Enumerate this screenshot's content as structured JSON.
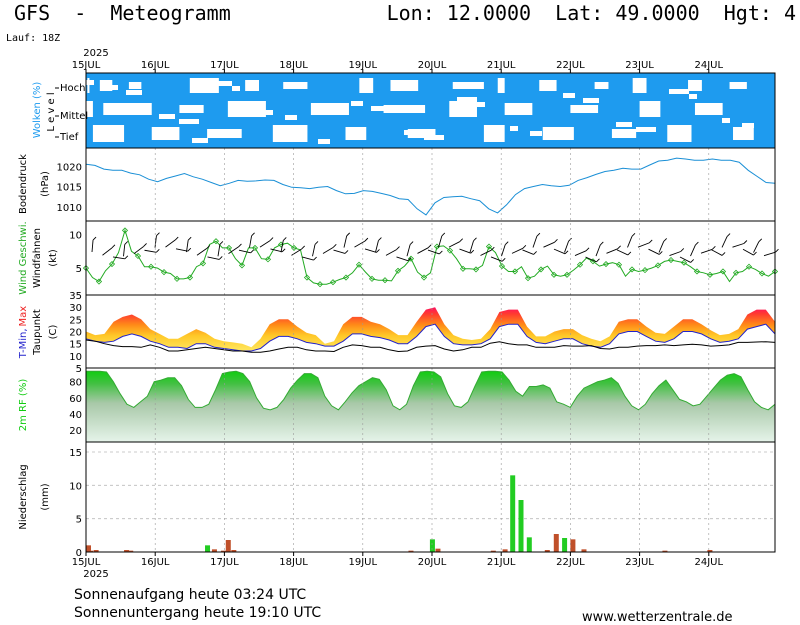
{
  "header": {
    "title": "GFS  -  Meteogramm",
    "coords": "Lon: 12.0000  Lat: 49.0000  Hgt: 4",
    "run": "Lauf: 18Z"
  },
  "footer": {
    "sunrise": "Sonnenaufgang heute 03:24 UTC",
    "sunset": "Sonnenuntergang heute 19:10 UTC",
    "site": "www.wetterzentrale.de"
  },
  "colors": {
    "sky": "#1e9bef",
    "pressure": "#1a8fd6",
    "wind": "#22aa22",
    "rh": "#11cc11",
    "precip_rain": "#22cc22",
    "precip_conv": "#c0502a",
    "tmin": "#2222cc",
    "tmax": "#ee2222"
  },
  "chart_data": {
    "type": "meteogram",
    "year": "2025",
    "days": [
      "15JUL",
      "16JUL",
      "17JUL",
      "18JUL",
      "19JUL",
      "20JUL",
      "21JUL",
      "22JUL",
      "23JUL",
      "24JUL"
    ],
    "clouds": {
      "ylabel": "Wolken (%)",
      "sublabel": "L e v e l",
      "levels": [
        "Hoch",
        "Mittel",
        "Tief"
      ]
    },
    "pressure": {
      "ylabel": "Bodendruck",
      "unit": "(hPa)",
      "ticks": [
        1020,
        1015,
        1010
      ],
      "ylim": [
        1006.5,
        1024.5
      ],
      "values": [
        1020.5,
        1020.2,
        1019.3,
        1019.0,
        1019.0,
        1018.3,
        1017.9,
        1016.8,
        1016.2,
        1017.0,
        1017.6,
        1018.2,
        1017.4,
        1016.8,
        1016.0,
        1015.2,
        1015.8,
        1016.5,
        1016.3,
        1016.4,
        1016.6,
        1016.5,
        1015.5,
        1014.8,
        1014.7,
        1014.5,
        1014.8,
        1015.0,
        1014.0,
        1013.2,
        1013.3,
        1014.0,
        1013.8,
        1013.3,
        1012.8,
        1012.0,
        1011.8,
        1009.5,
        1008.0,
        1011.0,
        1012.3,
        1012.5,
        1012.6,
        1012.0,
        1011.5,
        1009.5,
        1008.5,
        1010.5,
        1013.0,
        1014.5,
        1015.0,
        1015.5,
        1015.2,
        1015.0,
        1015.3,
        1016.5,
        1017.2,
        1018.0,
        1018.7,
        1019.0,
        1019.5,
        1019.3,
        1019.3,
        1020.3,
        1021.3,
        1021.5,
        1022.0,
        1021.8,
        1021.5,
        1021.5,
        1021.8,
        1021.5,
        1021.5,
        1021.0,
        1019.0,
        1017.5,
        1016.0,
        1015.8
      ]
    },
    "wind": {
      "ylabel": "Wind Geschwi.",
      "sublabel": "Windfahnen",
      "unit": "(kt)",
      "ticks": [
        10,
        5
      ],
      "ylim": [
        1,
        12
      ],
      "values": [
        5.0,
        3.6,
        3.0,
        4.6,
        5.6,
        7.3,
        10.6,
        7.5,
        6.8,
        5.2,
        5.2,
        5.0,
        4.4,
        4.2,
        3.4,
        3.4,
        3.6,
        5.2,
        5.7,
        8.5,
        9.0,
        8.0,
        8.0,
        6.4,
        5.4,
        8.0,
        8.0,
        6.4,
        6.3,
        8.0,
        8.5,
        8.7,
        8.0,
        7.7,
        3.6,
        2.8,
        2.6,
        2.6,
        2.9,
        3.3,
        3.6,
        4.3,
        5.5,
        4.4,
        3.4,
        3.2,
        3.2,
        3.1,
        4.6,
        5.3,
        6.4,
        4.4,
        3.6,
        4.3,
        8.2,
        8.3,
        7.6,
        6.4,
        4.9,
        4.9,
        4.8,
        5.4,
        8.2,
        7.3,
        5.3,
        4.5,
        4.5,
        5.2,
        3.5,
        3.8,
        4.8,
        5.3,
        4.0,
        3.8,
        4.0,
        4.7,
        5.5,
        6.5,
        6.0,
        5.3,
        5.6,
        5.8,
        5.5,
        3.8,
        4.8,
        4.5,
        4.7,
        5.0,
        5.4,
        6.0,
        6.2,
        6.0,
        5.8,
        5.2,
        4.5,
        4.3,
        4.0,
        4.2,
        4.5,
        3.0,
        4.3,
        4.5,
        5.2,
        4.8,
        4.2,
        3.8,
        4.5
      ]
    },
    "temperature": {
      "ylabel_tmin": "T-Min,",
      "ylabel_tmax": "Max",
      "sublabel": "Taupunkt",
      "unit": "(C)",
      "ticks": [
        35,
        30,
        25,
        20,
        15,
        10,
        5
      ],
      "ylim": [
        5,
        35
      ],
      "tmax": [
        20,
        18.5,
        19,
        24,
        26,
        27,
        25,
        21,
        19,
        17,
        17,
        19,
        21,
        19.5,
        17,
        16,
        15.5,
        15,
        13.5,
        17,
        23,
        25,
        25,
        22,
        19.5,
        18.5,
        15,
        16,
        23,
        26,
        26,
        24,
        23,
        21,
        18.5,
        18.5,
        24,
        29,
        30,
        23,
        18.5,
        17,
        16.5,
        17,
        21,
        28,
        29,
        29,
        22,
        18,
        18,
        20,
        21,
        21,
        18.5,
        17,
        16,
        18,
        24,
        25,
        25,
        22,
        19.5,
        19,
        22,
        25,
        25,
        23,
        20.5,
        18.5,
        19,
        21,
        27,
        29,
        29,
        24
      ],
      "tmin": [
        17,
        16,
        15.5,
        16,
        18,
        19,
        18,
        16,
        15,
        13.5,
        13.5,
        13,
        15,
        15,
        13.5,
        13,
        12.5,
        12,
        12,
        13,
        16,
        18,
        18,
        17,
        15.5,
        15,
        14,
        14,
        16,
        19,
        19,
        18,
        17.5,
        16.5,
        15,
        15,
        18,
        22,
        23,
        18,
        15,
        14.5,
        14.5,
        15,
        17,
        22,
        23,
        23,
        18,
        15.5,
        15,
        16,
        17,
        17,
        15,
        14,
        13.5,
        15,
        19,
        20,
        20,
        18,
        16,
        15.5,
        17,
        20,
        20,
        19,
        17,
        15.5,
        16,
        17,
        21,
        22,
        23,
        19
      ],
      "dew": [
        16.5,
        16,
        15,
        14.2,
        13.8,
        13.8,
        13.5,
        14.5,
        13.5,
        12,
        12,
        12.5,
        13,
        13.5,
        13,
        12.5,
        12,
        12,
        11.5,
        11.5,
        12,
        12.8,
        13.5,
        13.5,
        12.5,
        12,
        12,
        11.8,
        13.5,
        14.5,
        14.2,
        13.5,
        13.5,
        12.5,
        11.8,
        12,
        13.5,
        14,
        14.2,
        12.8,
        12,
        12.5,
        13.5,
        13.5,
        15.2,
        15.8,
        15,
        14.5,
        14.5,
        13.5,
        13.5,
        13.5,
        14.2,
        14,
        14,
        14.2,
        13,
        12.8,
        13.5,
        13.5,
        14,
        14.2,
        14.2,
        14.5,
        14.2,
        14.5,
        14.8,
        14.5,
        14,
        14.2,
        14.5,
        15.5,
        15.5,
        15.7,
        15.8,
        15.5
      ]
    },
    "humidity": {
      "ylabel": "2m RF (%)",
      "ticks": [
        80,
        60,
        40,
        20
      ],
      "ylim": [
        5,
        97
      ],
      "values": [
        93,
        93,
        93,
        92,
        80,
        65,
        52,
        48,
        55,
        62,
        80,
        82,
        85,
        85,
        75,
        58,
        48,
        48,
        52,
        70,
        90,
        92,
        93,
        90,
        80,
        60,
        47,
        45,
        48,
        58,
        72,
        82,
        90,
        90,
        85,
        62,
        50,
        45,
        55,
        66,
        75,
        80,
        85,
        83,
        70,
        50,
        45,
        52,
        75,
        92,
        93,
        92,
        86,
        65,
        50,
        48,
        55,
        74,
        92,
        93,
        93,
        92,
        82,
        68,
        62,
        74,
        74,
        76,
        72,
        55,
        52,
        48,
        62,
        72,
        76,
        80,
        82,
        85,
        78,
        62,
        50,
        45,
        52,
        65,
        75,
        82,
        70,
        58,
        55,
        50,
        52,
        62,
        72,
        82,
        88,
        90,
        86,
        70,
        55,
        48,
        45,
        52
      ]
    },
    "precip": {
      "ylabel": "Niederschlag",
      "unit": "(mm)",
      "ticks": [
        15,
        10,
        5,
        0
      ],
      "ylim": [
        0,
        16.5
      ],
      "bars": [
        {
          "t": 0.0,
          "v": 1.0,
          "kind": "conv"
        },
        {
          "t": 0.03,
          "v": 0.2,
          "kind": "conv"
        },
        {
          "t": 0.11,
          "v": 0.3,
          "kind": "conv"
        },
        {
          "t": 0.55,
          "v": 0.3,
          "kind": "conv"
        },
        {
          "t": 0.61,
          "v": 0.2,
          "kind": "conv"
        },
        {
          "t": 1.72,
          "v": 1.0,
          "kind": "rain"
        },
        {
          "t": 1.82,
          "v": 0.4,
          "kind": "conv"
        },
        {
          "t": 1.95,
          "v": 0.2,
          "kind": "conv"
        },
        {
          "t": 2.02,
          "v": 1.8,
          "kind": "conv"
        },
        {
          "t": 2.1,
          "v": 0.3,
          "kind": "conv"
        },
        {
          "t": 4.66,
          "v": 0.2,
          "kind": "conv"
        },
        {
          "t": 4.97,
          "v": 1.9,
          "kind": "rain"
        },
        {
          "t": 5.05,
          "v": 0.5,
          "kind": "conv"
        },
        {
          "t": 5.85,
          "v": 0.2,
          "kind": "conv"
        },
        {
          "t": 6.02,
          "v": 0.4,
          "kind": "conv"
        },
        {
          "t": 6.13,
          "v": 11.5,
          "kind": "rain"
        },
        {
          "t": 6.25,
          "v": 7.8,
          "kind": "rain"
        },
        {
          "t": 6.37,
          "v": 2.2,
          "kind": "rain"
        },
        {
          "t": 6.63,
          "v": 0.3,
          "kind": "conv"
        },
        {
          "t": 6.76,
          "v": 2.7,
          "kind": "conv"
        },
        {
          "t": 6.88,
          "v": 2.1,
          "kind": "rain"
        },
        {
          "t": 7.0,
          "v": 1.9,
          "kind": "conv"
        },
        {
          "t": 7.16,
          "v": 0.4,
          "kind": "conv"
        },
        {
          "t": 8.33,
          "v": 0.2,
          "kind": "conv"
        },
        {
          "t": 8.98,
          "v": 0.3,
          "kind": "conv"
        }
      ]
    }
  }
}
